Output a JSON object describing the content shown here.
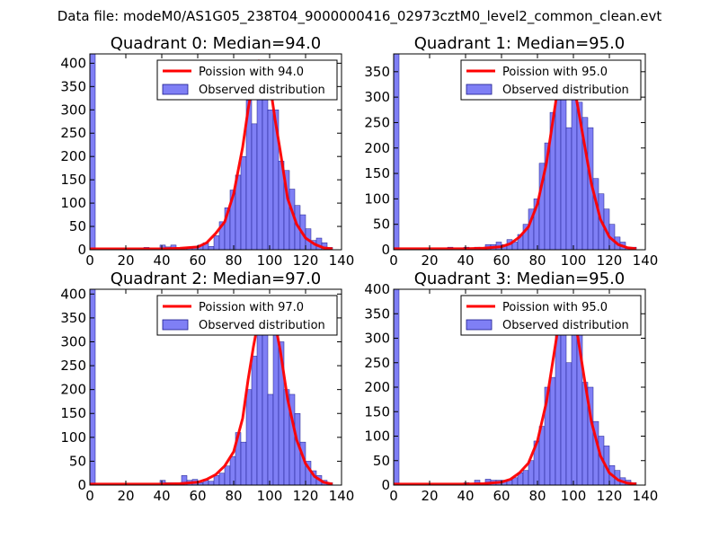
{
  "suptitle": "Data file: modeM0/AS1G05_238T04_9000000416_02973cztM0_level2_common_clean.evt",
  "colors": {
    "bar_fill": "#7f7ff5",
    "bar_edge": "#1a1a8c",
    "fit_line": "#ff0000",
    "legend_edge": "#000000"
  },
  "chart_data": [
    {
      "type": "bar",
      "title": "Quadrant 0: Median=94.0",
      "xlim": [
        0,
        140
      ],
      "ylim": [
        0,
        420
      ],
      "xticks": [
        0,
        20,
        40,
        60,
        80,
        100,
        120,
        140
      ],
      "yticks": [
        0,
        50,
        100,
        150,
        200,
        250,
        300,
        350,
        400
      ],
      "legend": [
        "Poission with 94.0",
        "Observed distribution"
      ],
      "legend_loc": "upper right",
      "bin_width": 3,
      "bins_x": [
        0,
        27,
        30,
        39,
        42,
        45,
        48,
        51,
        54,
        57,
        60,
        63,
        66,
        69,
        72,
        75,
        78,
        81,
        84,
        87,
        90,
        93,
        96,
        99,
        102,
        105,
        108,
        111,
        114,
        117,
        120,
        123,
        126,
        129,
        132,
        135
      ],
      "bins_y": [
        420,
        1,
        5,
        10,
        6,
        10,
        2,
        4,
        5,
        7,
        10,
        15,
        7,
        30,
        60,
        90,
        128,
        160,
        200,
        320,
        270,
        360,
        350,
        300,
        300,
        190,
        170,
        130,
        95,
        75,
        45,
        20,
        25,
        15,
        5,
        0
      ],
      "fit_x": [
        0,
        40,
        50,
        60,
        65,
        70,
        75,
        80,
        85,
        88,
        91,
        94,
        97,
        100,
        103,
        106,
        110,
        115,
        120,
        125,
        130,
        135
      ],
      "fit_y": [
        2,
        2,
        3,
        6,
        15,
        35,
        60,
        120,
        220,
        300,
        370,
        405,
        400,
        360,
        280,
        210,
        110,
        55,
        25,
        12,
        4,
        2
      ]
    },
    {
      "type": "bar",
      "title": "Quadrant 1: Median=95.0",
      "xlim": [
        0,
        140
      ],
      "ylim": [
        0,
        385
      ],
      "xticks": [
        0,
        20,
        40,
        60,
        80,
        100,
        120,
        140
      ],
      "yticks": [
        0,
        50,
        100,
        150,
        200,
        250,
        300,
        350
      ],
      "legend": [
        "Poission with 95.0",
        "Observed distribution"
      ],
      "legend_loc": "upper right",
      "bin_width": 3,
      "bins_x": [
        0,
        30,
        39,
        45,
        51,
        54,
        57,
        60,
        63,
        66,
        69,
        72,
        75,
        78,
        81,
        84,
        87,
        90,
        93,
        96,
        99,
        102,
        105,
        108,
        111,
        114,
        117,
        120,
        123,
        126,
        129,
        132
      ],
      "bins_y": [
        385,
        5,
        5,
        5,
        10,
        10,
        15,
        10,
        20,
        15,
        30,
        50,
        80,
        100,
        170,
        210,
        270,
        310,
        360,
        240,
        330,
        290,
        260,
        240,
        140,
        110,
        80,
        50,
        25,
        15,
        5,
        5
      ],
      "fit_x": [
        0,
        40,
        50,
        60,
        65,
        70,
        75,
        80,
        85,
        88,
        91,
        94,
        97,
        100,
        103,
        106,
        110,
        115,
        120,
        125,
        130,
        135
      ],
      "fit_y": [
        2,
        2,
        3,
        6,
        12,
        25,
        45,
        90,
        170,
        240,
        310,
        360,
        365,
        330,
        270,
        210,
        130,
        60,
        25,
        10,
        4,
        2
      ]
    },
    {
      "type": "bar",
      "title": "Quadrant 2: Median=97.0",
      "xlim": [
        0,
        140
      ],
      "ylim": [
        0,
        410
      ],
      "xticks": [
        0,
        20,
        40,
        60,
        80,
        100,
        120,
        140
      ],
      "yticks": [
        0,
        50,
        100,
        150,
        200,
        250,
        300,
        350,
        400
      ],
      "legend": [
        "Poission with 97.0",
        "Observed distribution"
      ],
      "legend_loc": "upper right",
      "bin_width": 3,
      "bins_x": [
        0,
        39,
        42,
        45,
        48,
        51,
        54,
        57,
        60,
        63,
        66,
        69,
        72,
        75,
        78,
        81,
        84,
        87,
        90,
        93,
        96,
        99,
        102,
        105,
        108,
        111,
        114,
        117,
        120,
        123,
        126,
        129,
        132
      ],
      "bins_y": [
        410,
        10,
        5,
        5,
        5,
        20,
        10,
        12,
        5,
        10,
        8,
        20,
        25,
        40,
        60,
        110,
        90,
        200,
        270,
        360,
        330,
        190,
        380,
        300,
        200,
        190,
        150,
        90,
        50,
        30,
        20,
        10,
        5
      ],
      "fit_x": [
        0,
        40,
        50,
        60,
        65,
        70,
        75,
        80,
        85,
        88,
        91,
        94,
        97,
        100,
        103,
        106,
        110,
        115,
        120,
        125,
        130,
        135
      ],
      "fit_y": [
        2,
        2,
        3,
        6,
        12,
        22,
        40,
        70,
        140,
        220,
        290,
        350,
        385,
        385,
        340,
        280,
        180,
        95,
        45,
        18,
        6,
        2
      ]
    },
    {
      "type": "bar",
      "title": "Quadrant 3: Median=95.0",
      "xlim": [
        0,
        140
      ],
      "ylim": [
        0,
        400
      ],
      "xticks": [
        0,
        20,
        40,
        60,
        80,
        100,
        120,
        140
      ],
      "yticks": [
        0,
        50,
        100,
        150,
        200,
        250,
        300,
        350,
        400
      ],
      "legend": [
        "Poission with 95.0",
        "Observed distribution"
      ],
      "legend_loc": "upper right",
      "bin_width": 3,
      "bins_x": [
        0,
        39,
        45,
        51,
        54,
        57,
        60,
        63,
        66,
        69,
        72,
        75,
        78,
        81,
        84,
        87,
        90,
        93,
        96,
        99,
        102,
        105,
        108,
        111,
        114,
        117,
        120,
        123,
        126,
        129,
        132
      ],
      "bins_y": [
        400,
        5,
        10,
        12,
        10,
        10,
        10,
        10,
        15,
        25,
        30,
        50,
        90,
        120,
        200,
        220,
        310,
        380,
        250,
        350,
        330,
        210,
        200,
        130,
        100,
        80,
        40,
        30,
        15,
        10,
        5
      ],
      "fit_x": [
        0,
        40,
        50,
        60,
        65,
        70,
        75,
        80,
        85,
        88,
        91,
        94,
        97,
        100,
        103,
        106,
        110,
        115,
        120,
        125,
        130,
        135
      ],
      "fit_y": [
        2,
        2,
        3,
        6,
        12,
        25,
        45,
        90,
        170,
        240,
        310,
        370,
        385,
        360,
        290,
        220,
        130,
        60,
        25,
        10,
        4,
        2
      ]
    }
  ]
}
